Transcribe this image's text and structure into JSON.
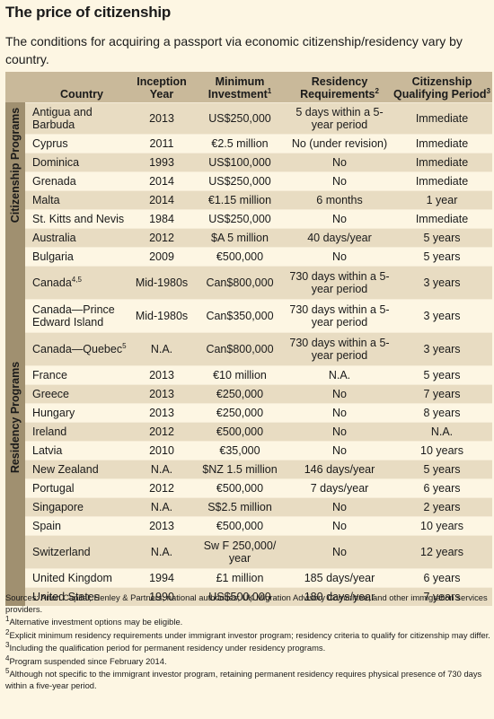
{
  "title": "The price of citizenship",
  "subtitle": "The conditions for acquiring a passport via economic citizenship/residency vary by country.",
  "headers": {
    "country": "Country",
    "year": "Inception Year",
    "investment": "Minimum Investment",
    "investment_sup": "1",
    "residency": "Residency Requirements",
    "residency_sup": "2",
    "qualifying": "Citizenship Qualifying Period",
    "qualifying_sup": "3"
  },
  "citizenship_label": "Citizenship Programs",
  "residency_label": "Residency Programs",
  "citizenship_rows": [
    {
      "country": "Antigua and Barbuda",
      "year": "2013",
      "investment": "US$250,000",
      "residency": "5 days within a 5-year period",
      "qualifying": "Immediate"
    },
    {
      "country": "Cyprus",
      "year": "2011",
      "investment": "€2.5 million",
      "residency": "No (under revision)",
      "qualifying": "Immediate"
    },
    {
      "country": "Dominica",
      "year": "1993",
      "investment": "US$100,000",
      "residency": "No",
      "qualifying": "Immediate"
    },
    {
      "country": "Grenada",
      "year": "2014",
      "investment": "US$250,000",
      "residency": "No",
      "qualifying": "Immediate"
    },
    {
      "country": "Malta",
      "year": "2014",
      "investment": "€1.15 million",
      "residency": "6 months",
      "qualifying": "1 year"
    },
    {
      "country": "St. Kitts and Nevis",
      "year": "1984",
      "investment": "US$250,000",
      "residency": "No",
      "qualifying": "Immediate"
    }
  ],
  "residency_rows": [
    {
      "country": "Australia",
      "year": "2012",
      "investment": "$A 5 million",
      "residency": "40 days/year",
      "qualifying": "5 years"
    },
    {
      "country": "Bulgaria",
      "year": "2009",
      "investment": "€500,000",
      "residency": "No",
      "qualifying": "5 years"
    },
    {
      "country": "Canada",
      "country_sup": "4,5",
      "year": "Mid-1980s",
      "investment": "Can$800,000",
      "residency": "730 days within a 5-year period",
      "qualifying": "3 years"
    },
    {
      "country": "Canada—Prince Edward Island",
      "year": "Mid-1980s",
      "investment": "Can$350,000",
      "residency": "730 days within a 5-year period",
      "qualifying": "3 years"
    },
    {
      "country": "Canada—Quebec",
      "country_sup": "5",
      "year": "N.A.",
      "investment": "Can$800,000",
      "residency": "730 days within a 5-year period",
      "qualifying": "3 years"
    },
    {
      "country": "France",
      "year": "2013",
      "investment": "€10 million",
      "residency": "N.A.",
      "qualifying": "5 years"
    },
    {
      "country": "Greece",
      "year": "2013",
      "investment": "€250,000",
      "residency": "No",
      "qualifying": "7 years"
    },
    {
      "country": "Hungary",
      "year": "2013",
      "investment": "€250,000",
      "residency": "No",
      "qualifying": "8 years"
    },
    {
      "country": "Ireland",
      "year": "2012",
      "investment": "€500,000",
      "residency": "No",
      "qualifying": "N.A."
    },
    {
      "country": "Latvia",
      "year": "2010",
      "investment": "€35,000",
      "residency": "No",
      "qualifying": "10 years"
    },
    {
      "country": "New Zealand",
      "year": "N.A.",
      "investment": "$NZ 1.5 million",
      "residency": "146 days/year",
      "qualifying": "5 years"
    },
    {
      "country": "Portugal",
      "year": "2012",
      "investment": "€500,000",
      "residency": "7 days/year",
      "qualifying": "6 years"
    },
    {
      "country": "Singapore",
      "year": "N.A.",
      "investment": "S$2.5 million",
      "residency": "No",
      "qualifying": "2 years"
    },
    {
      "country": "Spain",
      "year": "2013",
      "investment": "€500,000",
      "residency": "No",
      "qualifying": "10 years"
    },
    {
      "country": "Switzerland",
      "year": "N.A.",
      "investment": "Sw F 250,000/ year",
      "residency": "No",
      "qualifying": "12 years"
    },
    {
      "country": "United Kingdom",
      "year": "1994",
      "investment": "£1 million",
      "residency": "185 days/year",
      "qualifying": "6 years"
    },
    {
      "country": "United States",
      "year": "1990",
      "investment": "US$500,000",
      "residency": "180 days/year",
      "qualifying": "7 years"
    }
  ],
  "sources": "Sources: Arton Capital; Henley & Partners; national authorities; UK Migration Advisory Committee; and other immigration services providers.",
  "footnotes": [
    {
      "num": "1",
      "text": "Alternative investment options may be eligible."
    },
    {
      "num": "2",
      "text": "Explicit minimum residency requirements under immigrant investor program; residency criteria to qualify for citizenship may differ."
    },
    {
      "num": "3",
      "text": "Including the qualification period for permanent residency under residency programs."
    },
    {
      "num": "4",
      "text": "Program suspended since February 2014."
    },
    {
      "num": "5",
      "text": "Although not specific to the immigrant investor program, retaining permanent residency requires physical presence of 730 days within a five-year period."
    }
  ]
}
